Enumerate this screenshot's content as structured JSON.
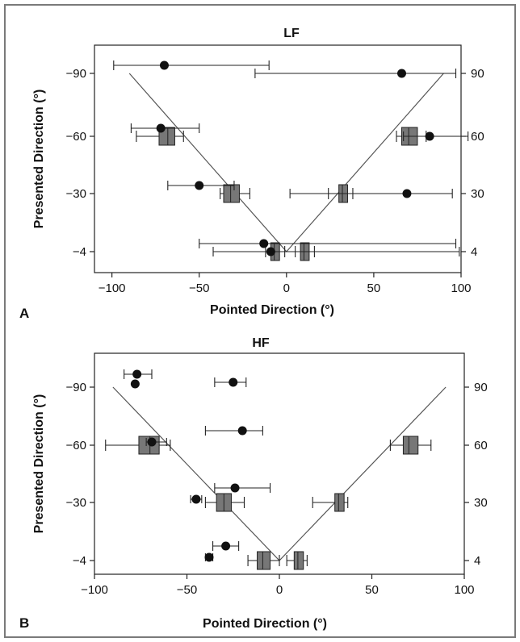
{
  "chart_data": [
    {
      "type": "scatter",
      "panel_label": "A",
      "title": "LF",
      "xlabel": "Pointed Direction (°)",
      "ylabel": "Presented Direction (°)",
      "xlim": [
        -110,
        100
      ],
      "x_ticks": [
        -100,
        -50,
        0,
        50,
        100
      ],
      "y_categories": [
        "-90",
        "-60",
        "-30",
        "-4"
      ],
      "y_right_categories": [
        "90",
        "60",
        "30",
        "4"
      ],
      "reference_line": [
        [
          -90,
          "-90"
        ],
        [
          0,
          "-4"
        ],
        [
          90,
          "-90"
        ]
      ],
      "point_series": [
        {
          "x": -70,
          "y": "-90",
          "xmin": -99,
          "xmax": -10
        },
        {
          "x": 66,
          "y": "-90",
          "xmin": -18,
          "xmax": 97
        },
        {
          "x": -72,
          "y": "-60",
          "xmin": -89,
          "xmax": -50
        },
        {
          "x": 82,
          "y": "-60",
          "xmin": 67,
          "xmax": 104
        },
        {
          "x": -50,
          "y": "-30",
          "xmin": -68,
          "xmax": -30
        },
        {
          "x": 69,
          "y": "-30",
          "xmin": 2,
          "xmax": 95
        },
        {
          "x": -13,
          "y": "-4",
          "xmin": -50,
          "xmax": 97
        },
        {
          "x": -9,
          "y": "-4",
          "xmin": -42,
          "xmax": 99
        }
      ],
      "box_series": [
        {
          "y": "-60",
          "q1": -73,
          "median": -68,
          "q3": -64,
          "whisker_low": -86,
          "whisker_high": -59
        },
        {
          "y": "-60",
          "q1": 66,
          "median": 70,
          "q3": 75,
          "whisker_low": 63,
          "whisker_high": 80
        },
        {
          "y": "-30",
          "q1": -36,
          "median": -32,
          "q3": -27,
          "whisker_low": -38,
          "whisker_high": -21
        },
        {
          "y": "-30",
          "q1": 30,
          "median": 32,
          "q3": 35,
          "whisker_low": 24,
          "whisker_high": 38
        },
        {
          "y": "-4",
          "q1": -9,
          "median": -7,
          "q3": -4,
          "whisker_low": -12,
          "whisker_high": -1
        },
        {
          "y": "-4",
          "q1": 8,
          "median": 10,
          "q3": 13,
          "whisker_low": 5,
          "whisker_high": 16
        }
      ]
    },
    {
      "type": "scatter",
      "panel_label": "B",
      "title": "HF",
      "xlabel": "Pointed Direction (°)",
      "ylabel": "Presented Direction (°)",
      "xlim": [
        -100,
        100
      ],
      "x_ticks": [
        -100,
        -50,
        0,
        50,
        100
      ],
      "y_categories": [
        "-90",
        "-60",
        "-30",
        "-4"
      ],
      "y_right_categories": [
        "90",
        "60",
        "30",
        "4"
      ],
      "reference_line": [
        [
          -90,
          "-90"
        ],
        [
          0,
          "-4"
        ],
        [
          90,
          "-90"
        ]
      ],
      "point_series": [
        {
          "x": -77,
          "y": "-90",
          "xmin": -84,
          "xmax": -69
        },
        {
          "x": -25,
          "y": "-90",
          "xmin": -35,
          "xmax": -18
        },
        {
          "x": -20,
          "y": "-60",
          "xmin": -40,
          "xmax": -9
        },
        {
          "x": -24,
          "y": "-30",
          "xmin": -35,
          "xmax": -5
        },
        {
          "x": -29,
          "y": "-4",
          "xmin": -36,
          "xmax": -22
        }
      ],
      "box_series": [
        {
          "y": "-60",
          "q1": -76,
          "median": -70,
          "q3": -65,
          "whisker_low": -94,
          "whisker_high": -59
        },
        {
          "y": "-60",
          "q1": 67,
          "median": 70,
          "q3": 75,
          "whisker_low": 60,
          "whisker_high": 82
        },
        {
          "y": "-30",
          "q1": -34,
          "median": -30,
          "q3": -26,
          "whisker_low": -40,
          "whisker_high": -19
        },
        {
          "y": "-30",
          "q1": 30,
          "median": 32,
          "q3": 35,
          "whisker_low": 18,
          "whisker_high": 37
        },
        {
          "y": "-4",
          "q1": -12,
          "median": -9,
          "q3": -5,
          "whisker_low": -17,
          "whisker_high": 0
        },
        {
          "y": "-4",
          "q1": 8,
          "median": 10,
          "q3": 13,
          "whisker_low": 4,
          "whisker_high": 15
        }
      ],
      "markers": [
        {
          "x": -78,
          "y": "-90"
        },
        {
          "x": -69,
          "y": "-60"
        },
        {
          "x": -45,
          "y": "-30"
        },
        {
          "x": -38,
          "y": "-4"
        }
      ],
      "markers_with_error": [
        {
          "x": -69,
          "y": "-60",
          "xmin": -72,
          "xmax": -61
        },
        {
          "x": -45,
          "y": "-30",
          "xmin": -48,
          "xmax": -42
        },
        {
          "x": -38,
          "y": "-4",
          "xmin": -40,
          "xmax": -36
        }
      ]
    }
  ]
}
